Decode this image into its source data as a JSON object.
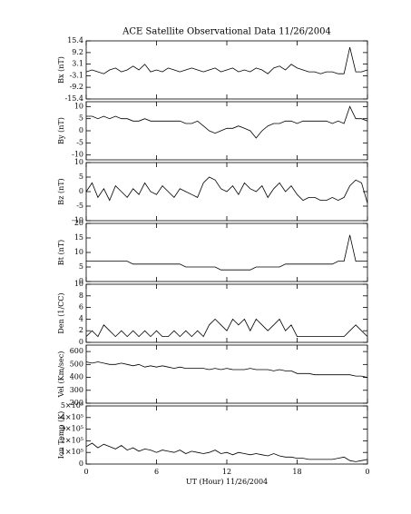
{
  "chart_data": [
    {
      "type": "line",
      "title": "ACE Satellite Observational Data   11/26/2004",
      "ylabel": "Bx (nT)",
      "color": "#000000",
      "x": [
        0,
        0.5,
        1,
        1.5,
        2,
        2.5,
        3,
        3.5,
        4,
        4.5,
        5,
        5.5,
        6,
        6.5,
        7,
        7.5,
        8,
        8.5,
        9,
        9.5,
        10,
        10.5,
        11,
        11.5,
        12,
        12.5,
        13,
        13.5,
        14,
        14.5,
        15,
        15.5,
        16,
        16.5,
        17,
        17.5,
        18,
        18.5,
        19,
        19.5,
        20,
        20.5,
        21,
        21.5,
        22,
        22.5,
        23,
        23.5,
        24
      ],
      "values": [
        -1,
        0,
        -1,
        -2,
        0,
        1,
        -1,
        0,
        2,
        0,
        3,
        -1,
        0,
        -1,
        1,
        0,
        -1,
        0,
        1,
        0,
        -1,
        0,
        1,
        -1,
        0,
        1,
        -1,
        0,
        -1,
        1,
        0,
        -2,
        1,
        2,
        0,
        3,
        1,
        0,
        -1,
        -1,
        -2,
        -1,
        -1,
        -2,
        -2,
        12,
        -1,
        -1,
        0
      ],
      "xlim": [
        0,
        24
      ],
      "xticks": [
        0,
        6,
        12,
        18,
        24
      ],
      "ylim": [
        -15.4,
        15.4
      ],
      "yticks": [
        15.4,
        9.2,
        3.1,
        -3.1,
        -9.2,
        -15.4
      ]
    },
    {
      "type": "line",
      "ylabel": "By (nT)",
      "color": "#000000",
      "x": [
        0,
        0.5,
        1,
        1.5,
        2,
        2.5,
        3,
        3.5,
        4,
        4.5,
        5,
        5.5,
        6,
        6.5,
        7,
        7.5,
        8,
        8.5,
        9,
        9.5,
        10,
        10.5,
        11,
        11.5,
        12,
        12.5,
        13,
        13.5,
        14,
        14.5,
        15,
        15.5,
        16,
        16.5,
        17,
        17.5,
        18,
        18.5,
        19,
        19.5,
        20,
        20.5,
        21,
        21.5,
        22,
        22.5,
        23,
        23.5,
        24
      ],
      "values": [
        6,
        6,
        5,
        6,
        5,
        6,
        5,
        5,
        4,
        4,
        5,
        4,
        4,
        4,
        4,
        4,
        4,
        3,
        3,
        4,
        2,
        0,
        -1,
        0,
        1,
        1,
        2,
        1,
        0,
        -3,
        0,
        2,
        3,
        3,
        4,
        4,
        3,
        4,
        4,
        4,
        4,
        4,
        3,
        4,
        3,
        10,
        5,
        5,
        4
      ],
      "xlim": [
        0,
        24
      ],
      "xticks": [
        0,
        6,
        12,
        18,
        24
      ],
      "ylim": [
        -12,
        12
      ],
      "yticks": [
        10,
        5,
        0,
        -5,
        -10
      ]
    },
    {
      "type": "line",
      "ylabel": "Bz (nT)",
      "color": "#000000",
      "x": [
        0,
        0.5,
        1,
        1.5,
        2,
        2.5,
        3,
        3.5,
        4,
        4.5,
        5,
        5.5,
        6,
        6.5,
        7,
        7.5,
        8,
        8.5,
        9,
        9.5,
        10,
        10.5,
        11,
        11.5,
        12,
        12.5,
        13,
        13.5,
        14,
        14.5,
        15,
        15.5,
        16,
        16.5,
        17,
        17.5,
        18,
        18.5,
        19,
        19.5,
        20,
        20.5,
        21,
        21.5,
        22,
        22.5,
        23,
        23.5,
        24
      ],
      "values": [
        0,
        3,
        -2,
        1,
        -3,
        2,
        0,
        -2,
        1,
        -1,
        3,
        0,
        -1,
        2,
        0,
        -2,
        1,
        0,
        -1,
        -2,
        3,
        5,
        4,
        1,
        0,
        2,
        -1,
        3,
        1,
        0,
        2,
        -2,
        1,
        3,
        0,
        2,
        -1,
        -3,
        -2,
        -2,
        -3,
        -3,
        -2,
        -3,
        -2,
        2,
        4,
        3,
        -4
      ],
      "xlim": [
        0,
        24
      ],
      "xticks": [
        0,
        6,
        12,
        18,
        24
      ],
      "ylim": [
        -10,
        10
      ],
      "yticks": [
        10,
        5,
        0,
        -5,
        -10
      ]
    },
    {
      "type": "line",
      "ylabel": "Bt (nT)",
      "color": "#000000",
      "x": [
        0,
        0.5,
        1,
        1.5,
        2,
        2.5,
        3,
        3.5,
        4,
        4.5,
        5,
        5.5,
        6,
        6.5,
        7,
        7.5,
        8,
        8.5,
        9,
        9.5,
        10,
        10.5,
        11,
        11.5,
        12,
        12.5,
        13,
        13.5,
        14,
        14.5,
        15,
        15.5,
        16,
        16.5,
        17,
        17.5,
        18,
        18.5,
        19,
        19.5,
        20,
        20.5,
        21,
        21.5,
        22,
        22.5,
        23,
        23.5,
        24
      ],
      "values": [
        7,
        7,
        7,
        7,
        7,
        7,
        7,
        7,
        6,
        6,
        6,
        6,
        6,
        6,
        6,
        6,
        6,
        5,
        5,
        5,
        5,
        5,
        5,
        4,
        4,
        4,
        4,
        4,
        4,
        5,
        5,
        5,
        5,
        5,
        6,
        6,
        6,
        6,
        6,
        6,
        6,
        6,
        6,
        7,
        7,
        16,
        7,
        7,
        7
      ],
      "xlim": [
        0,
        24
      ],
      "xticks": [
        0,
        6,
        12,
        18,
        24
      ],
      "ylim": [
        0,
        20
      ],
      "yticks": [
        20,
        15,
        10,
        5,
        0
      ]
    },
    {
      "type": "line",
      "ylabel": "Den (1/CC)",
      "color": "#000000",
      "x": [
        0,
        0.5,
        1,
        1.5,
        2,
        2.5,
        3,
        3.5,
        4,
        4.5,
        5,
        5.5,
        6,
        6.5,
        7,
        7.5,
        8,
        8.5,
        9,
        9.5,
        10,
        10.5,
        11,
        11.5,
        12,
        12.5,
        13,
        13.5,
        14,
        14.5,
        15,
        15.5,
        16,
        16.5,
        17,
        17.5,
        18,
        18.5,
        19,
        19.5,
        20,
        20.5,
        21,
        21.5,
        22,
        22.5,
        23,
        23.5,
        24
      ],
      "values": [
        1,
        2,
        1,
        3,
        2,
        1,
        2,
        1,
        2,
        1,
        2,
        1,
        2,
        1,
        1,
        2,
        1,
        2,
        1,
        2,
        1,
        3,
        4,
        3,
        2,
        4,
        3,
        4,
        2,
        4,
        3,
        2,
        3,
        4,
        2,
        3,
        1,
        1,
        1,
        1,
        1,
        1,
        1,
        1,
        1,
        2,
        3,
        2,
        1
      ],
      "xlim": [
        0,
        24
      ],
      "xticks": [
        0,
        6,
        12,
        18,
        24
      ],
      "ylim": [
        0,
        10
      ],
      "yticks": [
        10,
        8,
        6,
        4,
        2,
        0
      ]
    },
    {
      "type": "line",
      "ylabel": "Vel (Km/sec)",
      "color": "#000000",
      "x": [
        0,
        0.5,
        1,
        1.5,
        2,
        2.5,
        3,
        3.5,
        4,
        4.5,
        5,
        5.5,
        6,
        6.5,
        7,
        7.5,
        8,
        8.5,
        9,
        9.5,
        10,
        10.5,
        11,
        11.5,
        12,
        12.5,
        13,
        13.5,
        14,
        14.5,
        15,
        15.5,
        16,
        16.5,
        17,
        17.5,
        18,
        18.5,
        19,
        19.5,
        20,
        20.5,
        21,
        21.5,
        22,
        22.5,
        23,
        23.5,
        24
      ],
      "values": [
        520,
        510,
        520,
        510,
        500,
        500,
        510,
        500,
        490,
        500,
        480,
        490,
        480,
        490,
        480,
        470,
        480,
        470,
        470,
        470,
        470,
        460,
        470,
        460,
        470,
        460,
        460,
        460,
        470,
        460,
        460,
        460,
        450,
        460,
        450,
        450,
        430,
        430,
        430,
        420,
        420,
        420,
        420,
        420,
        420,
        420,
        410,
        410,
        400
      ],
      "xlim": [
        0,
        24
      ],
      "xticks": [
        0,
        6,
        12,
        18,
        24
      ],
      "ylim": [
        200,
        650
      ],
      "yticks": [
        600,
        500,
        400,
        300,
        200
      ]
    },
    {
      "type": "line",
      "ylabel": "Ion Temp (K)",
      "xlabel": "UT (Hour)  11/26/2004",
      "color": "#000000",
      "x": [
        0,
        0.5,
        1,
        1.5,
        2,
        2.5,
        3,
        3.5,
        4,
        4.5,
        5,
        5.5,
        6,
        6.5,
        7,
        7.5,
        8,
        8.5,
        9,
        9.5,
        10,
        10.5,
        11,
        11.5,
        12,
        12.5,
        13,
        13.5,
        14,
        14.5,
        15,
        15.5,
        16,
        16.5,
        17,
        17.5,
        18,
        18.5,
        19,
        19.5,
        20,
        20.5,
        21,
        21.5,
        22,
        22.5,
        23,
        23.5,
        24
      ],
      "values": [
        150000,
        180000,
        140000,
        170000,
        150000,
        130000,
        160000,
        120000,
        140000,
        110000,
        130000,
        120000,
        100000,
        120000,
        110000,
        100000,
        120000,
        90000,
        110000,
        100000,
        90000,
        100000,
        120000,
        90000,
        100000,
        80000,
        100000,
        90000,
        80000,
        90000,
        80000,
        70000,
        90000,
        70000,
        60000,
        60000,
        50000,
        50000,
        40000,
        40000,
        40000,
        40000,
        40000,
        50000,
        60000,
        30000,
        20000,
        30000,
        40000
      ],
      "xlim": [
        0,
        24
      ],
      "xticks": [
        0,
        6,
        12,
        18,
        {
          "value": 24,
          "label": "0"
        }
      ],
      "ylim": [
        0,
        500000
      ],
      "yticks": [
        {
          "value": 500000,
          "label": "5×10⁵"
        },
        {
          "value": 400000,
          "label": "4×10⁵"
        },
        {
          "value": 300000,
          "label": "3×10⁵"
        },
        {
          "value": 200000,
          "label": "2×10⁵"
        },
        {
          "value": 100000,
          "label": "1×10⁵"
        },
        0
      ]
    }
  ]
}
